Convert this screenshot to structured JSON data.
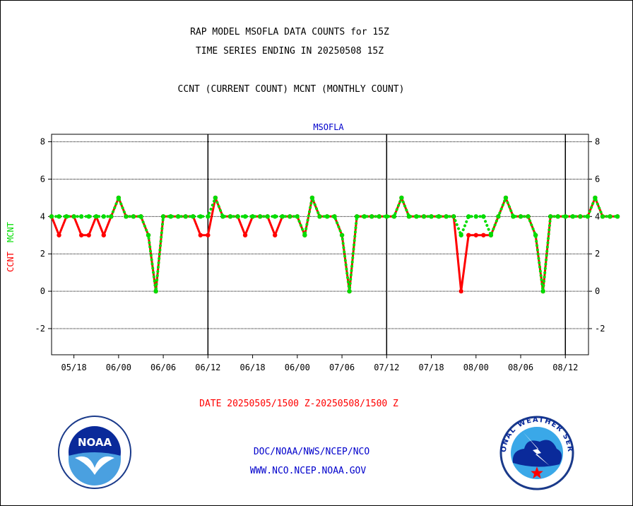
{
  "header": {
    "title_line1": "RAP MODEL MSOFLA DATA COUNTS for 15Z",
    "title_line2": "TIME SERIES ENDING IN 20250508 15Z",
    "subtitle": "CCNT (CURRENT COUNT) MCNT (MONTHLY COUNT)"
  },
  "plot": {
    "station_label": "MSOFLA",
    "ylabel_ccnt": "CCNT",
    "ylabel_mcnt": "MCNT",
    "date_range": "DATE 20250505/1500 Z-20250508/1500 Z"
  },
  "footer": {
    "agency_line": "DOC/NOAA/NWS/NCEP/NCO",
    "website": "WWW.NCO.NCEP.NOAA.GOV",
    "noaa_logo_text": "NOAA",
    "nws_logo_text": "NATIONAL WEATHER SERVICE"
  },
  "colors": {
    "ccnt": "#ff0000",
    "mcnt": "#00dd00",
    "title": "#000000",
    "station": "#0000cc",
    "date_range": "#ff0000",
    "footer_text": "#0000cc"
  },
  "chart_data": {
    "type": "line",
    "ylim": [
      -3.4,
      8.4
    ],
    "yticks": [
      -2,
      0,
      2,
      4,
      6,
      8
    ],
    "ytick_labels": [
      "-2",
      "0",
      "2",
      "4",
      "6",
      "8"
    ],
    "x_range_index": [
      0,
      72
    ],
    "xticks": [
      {
        "label": "05/18",
        "x": 3
      },
      {
        "label": "06/00",
        "x": 9
      },
      {
        "label": "06/06",
        "x": 15
      },
      {
        "label": "06/12",
        "x": 21
      },
      {
        "label": "06/18",
        "x": 27
      },
      {
        "label": "06/00",
        "x": 33
      },
      {
        "label": "07/06",
        "x": 39
      },
      {
        "label": "07/12",
        "x": 45
      },
      {
        "label": "07/18",
        "x": 51
      },
      {
        "label": "08/00",
        "x": 57
      },
      {
        "label": "08/06",
        "x": 63
      },
      {
        "label": "08/12",
        "x": 69
      }
    ],
    "day_boundaries": [
      21,
      45,
      69
    ],
    "grid": true,
    "series": [
      {
        "name": "CCNT",
        "style": "solid",
        "values": [
          4,
          3,
          4,
          4,
          3,
          3,
          4,
          3,
          4,
          5,
          4,
          4,
          4,
          3,
          0,
          4,
          4,
          4,
          4,
          4,
          3,
          3,
          5,
          4,
          4,
          4,
          3,
          4,
          4,
          4,
          3,
          4,
          4,
          4,
          3,
          5,
          4,
          4,
          4,
          3,
          0,
          4,
          4,
          4,
          4,
          4,
          4,
          5,
          4,
          4,
          4,
          4,
          4,
          4,
          4,
          0,
          3,
          3,
          3,
          3,
          4,
          5,
          4,
          4,
          4,
          3,
          0,
          4,
          4,
          4,
          4,
          4,
          4,
          5,
          4,
          4,
          4
        ]
      },
      {
        "name": "MCNT",
        "style": "dotted",
        "values": [
          4,
          4,
          4,
          4,
          4,
          4,
          4,
          4,
          4,
          5,
          4,
          4,
          4,
          3,
          0,
          4,
          4,
          4,
          4,
          4,
          4,
          4,
          5,
          4,
          4,
          4,
          4,
          4,
          4,
          4,
          4,
          4,
          4,
          4,
          3,
          5,
          4,
          4,
          4,
          3,
          0,
          4,
          4,
          4,
          4,
          4,
          4,
          5,
          4,
          4,
          4,
          4,
          4,
          4,
          4,
          3,
          4,
          4,
          4,
          3,
          4,
          5,
          4,
          4,
          4,
          3,
          0,
          4,
          4,
          4,
          4,
          4,
          4,
          5,
          4,
          4,
          4
        ]
      }
    ]
  }
}
